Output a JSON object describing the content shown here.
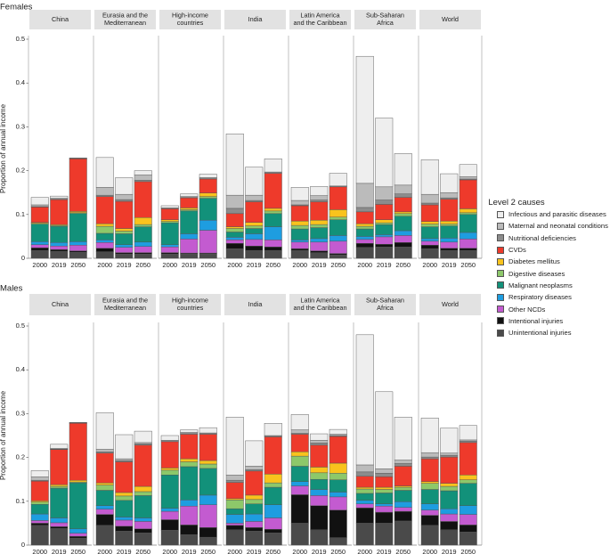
{
  "figure": {
    "panel_titles": [
      "Females",
      "Males"
    ],
    "regions": [
      "China",
      "Eurasia and the\nMediterranean",
      "High-income\ncountries",
      "India",
      "Latin America\nand the Caribbean",
      "Sub-Saharan\nAfrica",
      "World"
    ],
    "years": [
      "2000",
      "2019",
      "2050"
    ],
    "ylabel": "Proportion of annual income",
    "legend_title": "Level 2 causes"
  },
  "colors": {
    "Infectious and parasitic diseases": "#eeeeee",
    "Maternal and neonatal conditions": "#bbbbbb",
    "Nutritional deficiencies": "#8c8c8c",
    "CVDs": "#ee3a2b",
    "Diabetes mellitus": "#f9c31d",
    "Digestive diseases": "#8dc86a",
    "Malignant neoplasms": "#12917a",
    "Respiratory diseases": "#1e9de0",
    "Other NCDs": "#c35bd0",
    "Intentional injuries": "#111111",
    "Unintentional injuries": "#4a4a4a"
  },
  "legend": [
    "Infectious and parasitic diseases",
    "Maternal and neonatal conditions",
    "Nutritional deficiencies",
    "CVDs",
    "Diabetes mellitus",
    "Digestive diseases",
    "Malignant neoplasms",
    "Respiratory diseases",
    "Other NCDs",
    "Intentional injuries",
    "Unintentional injuries"
  ],
  "chart_data": [
    {
      "type": "bar",
      "stacked": true,
      "title": "Females",
      "xlabel": "",
      "ylabel": "Proportion of annual income",
      "ylim": [
        0,
        0.5
      ],
      "yticks": [
        "0",
        "0.1",
        "0.2",
        "0.3",
        "0.4",
        "0.5"
      ],
      "categories": [
        "2000",
        "2019",
        "2050"
      ],
      "stack_order": [
        "Unintentional injuries",
        "Intentional injuries",
        "Other NCDs",
        "Respiratory diseases",
        "Malignant neoplasms",
        "Digestive diseases",
        "Diabetes mellitus",
        "CVDs",
        "Nutritional deficiencies",
        "Maternal and neonatal conditions",
        "Infectious and parasitic diseases"
      ],
      "groups": [
        {
          "region": "China",
          "values": [
            [
              0.018,
              0.006,
              0.007,
              0.007,
              0.04,
              0.002,
              0.002,
              0.035,
              0.001,
              0.004,
              0.017
            ],
            [
              0.016,
              0.004,
              0.008,
              0.008,
              0.037,
              0.002,
              0.002,
              0.057,
              0.001,
              0.002,
              0.005
            ],
            [
              0.014,
              0.003,
              0.013,
              0.008,
              0.064,
              0.002,
              0.003,
              0.12,
              0.001,
              0.0,
              0.001
            ]
          ]
        },
        {
          "region": "Eurasia and the\nMediterranean",
          "values": [
            [
              0.015,
              0.008,
              0.013,
              0.006,
              0.015,
              0.016,
              0.006,
              0.062,
              0.003,
              0.018,
              0.068
            ],
            [
              0.01,
              0.003,
              0.012,
              0.006,
              0.025,
              0.006,
              0.006,
              0.062,
              0.004,
              0.012,
              0.038
            ],
            [
              0.01,
              0.003,
              0.014,
              0.01,
              0.035,
              0.005,
              0.016,
              0.082,
              0.003,
              0.012,
              0.01
            ]
          ]
        },
        {
          "region": "High-income\ncountries",
          "values": [
            [
              0.01,
              0.003,
              0.013,
              0.005,
              0.05,
              0.003,
              0.004,
              0.025,
              0.002,
              0.0,
              0.005
            ],
            [
              0.01,
              0.002,
              0.032,
              0.012,
              0.052,
              0.003,
              0.004,
              0.023,
              0.003,
              0.0,
              0.006
            ],
            [
              0.01,
              0.002,
              0.052,
              0.023,
              0.05,
              0.004,
              0.008,
              0.032,
              0.003,
              0.0,
              0.008
            ]
          ]
        },
        {
          "region": "India",
          "values": [
            [
              0.022,
              0.012,
              0.008,
              0.006,
              0.012,
              0.008,
              0.004,
              0.03,
              0.012,
              0.03,
              0.14
            ],
            [
              0.018,
              0.01,
              0.015,
              0.013,
              0.012,
              0.006,
              0.008,
              0.047,
              0.003,
              0.012,
              0.064
            ],
            [
              0.018,
              0.008,
              0.016,
              0.03,
              0.03,
              0.006,
              0.006,
              0.08,
              0.003,
              0.0,
              0.03
            ]
          ]
        },
        {
          "region": "Latin America\nand the Caribbean",
          "values": [
            [
              0.018,
              0.004,
              0.015,
              0.005,
              0.025,
              0.008,
              0.01,
              0.035,
              0.002,
              0.01,
              0.03
            ],
            [
              0.013,
              0.004,
              0.02,
              0.008,
              0.025,
              0.007,
              0.01,
              0.042,
              0.004,
              0.01,
              0.021
            ],
            [
              0.008,
              0.003,
              0.028,
              0.013,
              0.036,
              0.006,
              0.017,
              0.052,
              0.002,
              0.0,
              0.029
            ]
          ]
        },
        {
          "region": "Sub-Saharan\nAfrica",
          "values": [
            [
              0.025,
              0.009,
              0.009,
              0.007,
              0.017,
              0.006,
              0.006,
              0.027,
              0.01,
              0.055,
              0.29
            ],
            [
              0.026,
              0.006,
              0.017,
              0.005,
              0.023,
              0.004,
              0.007,
              0.035,
              0.01,
              0.03,
              0.157
            ],
            [
              0.026,
              0.01,
              0.016,
              0.011,
              0.033,
              0.006,
              0.004,
              0.033,
              0.008,
              0.02,
              0.072
            ]
          ]
        },
        {
          "region": "World",
          "values": [
            [
              0.022,
              0.008,
              0.009,
              0.006,
              0.027,
              0.006,
              0.006,
              0.038,
              0.004,
              0.02,
              0.079
            ],
            [
              0.018,
              0.005,
              0.014,
              0.009,
              0.028,
              0.004,
              0.007,
              0.05,
              0.003,
              0.012,
              0.043
            ],
            [
              0.018,
              0.005,
              0.021,
              0.015,
              0.041,
              0.004,
              0.009,
              0.066,
              0.002,
              0.005,
              0.028
            ]
          ]
        }
      ]
    },
    {
      "type": "bar",
      "stacked": true,
      "title": "Males",
      "xlabel": "",
      "ylabel": "Proportion of annual income",
      "ylim": [
        0,
        0.5
      ],
      "yticks": [
        "0",
        "0.1",
        "0.2",
        "0.3",
        "0.4",
        "0.5"
      ],
      "categories": [
        "2000",
        "2019",
        "2050"
      ],
      "stack_order": [
        "Unintentional injuries",
        "Intentional injuries",
        "Other NCDs",
        "Respiratory diseases",
        "Malignant neoplasms",
        "Digestive diseases",
        "Diabetes mellitus",
        "CVDs",
        "Nutritional deficiencies",
        "Maternal and neonatal conditions",
        "Infectious and parasitic diseases"
      ],
      "groups": [
        {
          "region": "China",
          "values": [
            [
              0.045,
              0.005,
              0.006,
              0.015,
              0.022,
              0.005,
              0.003,
              0.045,
              0.002,
              0.008,
              0.014
            ],
            [
              0.038,
              0.004,
              0.009,
              0.011,
              0.068,
              0.004,
              0.004,
              0.08,
              0.001,
              0.002,
              0.009
            ],
            [
              0.016,
              0.004,
              0.007,
              0.01,
              0.105,
              0.002,
              0.004,
              0.13,
              0.001,
              0.0,
              0.001
            ]
          ]
        },
        {
          "region": "Eurasia and the\nMediterranean",
          "values": [
            [
              0.045,
              0.025,
              0.012,
              0.008,
              0.035,
              0.012,
              0.005,
              0.068,
              0.003,
              0.006,
              0.083
            ],
            [
              0.032,
              0.011,
              0.014,
              0.007,
              0.038,
              0.01,
              0.008,
              0.07,
              0.003,
              0.004,
              0.055
            ],
            [
              0.028,
              0.009,
              0.017,
              0.008,
              0.051,
              0.009,
              0.012,
              0.094,
              0.003,
              0.003,
              0.026
            ]
          ]
        },
        {
          "region": "High-income\ncountries",
          "values": [
            [
              0.034,
              0.024,
              0.019,
              0.007,
              0.076,
              0.011,
              0.005,
              0.06,
              0.003,
              0.0,
              0.011
            ],
            [
              0.024,
              0.022,
              0.043,
              0.014,
              0.076,
              0.011,
              0.007,
              0.056,
              0.004,
              0.0,
              0.006
            ],
            [
              0.018,
              0.022,
              0.052,
              0.022,
              0.061,
              0.01,
              0.008,
              0.06,
              0.003,
              0.0,
              0.012
            ]
          ]
        },
        {
          "region": "India",
          "values": [
            [
              0.035,
              0.01,
              0.005,
              0.02,
              0.013,
              0.02,
              0.003,
              0.037,
              0.005,
              0.012,
              0.132
            ],
            [
              0.032,
              0.008,
              0.014,
              0.017,
              0.023,
              0.01,
              0.01,
              0.055,
              0.003,
              0.008,
              0.058
            ],
            [
              0.028,
              0.008,
              0.026,
              0.03,
              0.04,
              0.01,
              0.02,
              0.085,
              0.003,
              0.0,
              0.028
            ]
          ]
        },
        {
          "region": "Latin America\nand the Caribbean",
          "values": [
            [
              0.05,
              0.065,
              0.02,
              0.01,
              0.035,
              0.023,
              0.01,
              0.04,
              0.002,
              0.008,
              0.035
            ],
            [
              0.035,
              0.055,
              0.023,
              0.014,
              0.023,
              0.015,
              0.013,
              0.05,
              0.005,
              0.006,
              0.015
            ],
            [
              0.017,
              0.063,
              0.03,
              0.011,
              0.028,
              0.015,
              0.023,
              0.061,
              0.002,
              0.003,
              0.011
            ]
          ]
        },
        {
          "region": "Sub-Saharan\nAfrica",
          "values": [
            [
              0.05,
              0.035,
              0.009,
              0.008,
              0.016,
              0.01,
              0.004,
              0.025,
              0.01,
              0.016,
              0.297
            ],
            [
              0.05,
              0.025,
              0.014,
              0.005,
              0.025,
              0.008,
              0.005,
              0.024,
              0.008,
              0.01,
              0.176
            ],
            [
              0.055,
              0.022,
              0.009,
              0.013,
              0.026,
              0.007,
              0.003,
              0.045,
              0.006,
              0.008,
              0.098
            ]
          ]
        },
        {
          "region": "World",
          "values": [
            [
              0.045,
              0.023,
              0.012,
              0.014,
              0.033,
              0.014,
              0.004,
              0.052,
              0.004,
              0.01,
              0.079
            ],
            [
              0.035,
              0.019,
              0.017,
              0.012,
              0.041,
              0.01,
              0.007,
              0.06,
              0.004,
              0.005,
              0.057
            ],
            [
              0.03,
              0.016,
              0.024,
              0.02,
              0.051,
              0.008,
              0.011,
              0.074,
              0.003,
              0.003,
              0.033
            ]
          ]
        }
      ]
    }
  ]
}
